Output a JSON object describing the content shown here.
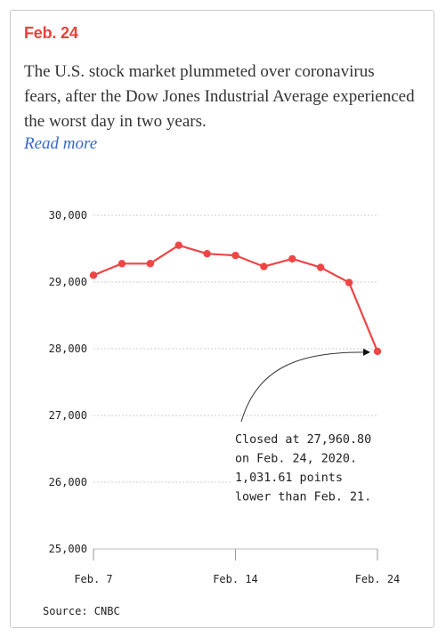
{
  "date_label": "Feb. 24",
  "description": "The U.S. stock market plummeted over coronavirus fears, after the Dow Jones Industrial Average experienced the worst day in two years.",
  "read_more": "Read more",
  "source": "Source: CNBC",
  "colors": {
    "accent": "#e8413c",
    "link": "#3869c6",
    "line": "#f04545",
    "grid": "#cccccc"
  },
  "chart_data": {
    "type": "line",
    "title": "",
    "xlabel": "",
    "ylabel": "",
    "ylim": [
      25000,
      30000
    ],
    "yticks": [
      30000,
      29000,
      28000,
      27000,
      26000,
      25000
    ],
    "ytick_labels": [
      "30,000",
      "29,000",
      "28,000",
      "27,000",
      "26,000",
      "25,000"
    ],
    "xticks": [
      "Feb. 7",
      "Feb. 14",
      "Feb. 24"
    ],
    "x": [
      "Feb. 7",
      "Feb. 10",
      "Feb. 11",
      "Feb. 12",
      "Feb. 13",
      "Feb. 14",
      "Feb. 18",
      "Feb. 19",
      "Feb. 20",
      "Feb. 21",
      "Feb. 24"
    ],
    "series": [
      {
        "values": [
          29102,
          29276,
          29277,
          29551,
          29424,
          29398,
          29232,
          29348,
          29219,
          28992,
          27961
        ]
      }
    ],
    "grid": true,
    "annotation": {
      "lines": [
        "Closed at 27,960.80",
        "on Feb. 24, 2020.",
        "1,031.61 points",
        "lower than Feb. 21."
      ]
    }
  }
}
